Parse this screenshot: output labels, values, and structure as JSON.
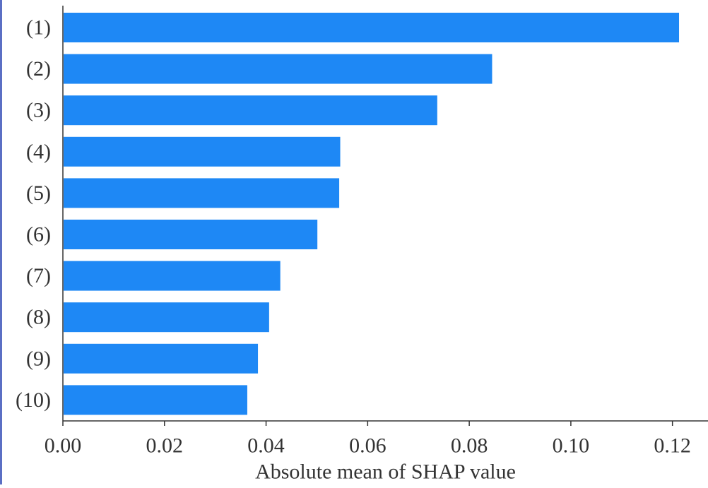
{
  "chart_data": {
    "type": "bar",
    "orientation": "horizontal",
    "title": "",
    "xlabel": "Absolute mean of SHAP value",
    "ylabel": "",
    "categories": [
      "(1)",
      "(2)",
      "(3)",
      "(4)",
      "(5)",
      "(6)",
      "(7)",
      "(8)",
      "(9)",
      "(10)"
    ],
    "values": [
      0.1213,
      0.0845,
      0.0737,
      0.0546,
      0.0544,
      0.0501,
      0.0428,
      0.0406,
      0.0384,
      0.0363
    ],
    "xlim": [
      0,
      0.127
    ],
    "xticks": [
      "0.00",
      "0.02",
      "0.04",
      "0.06",
      "0.08",
      "0.10",
      "0.12"
    ],
    "xtick_values": [
      0,
      0.02,
      0.04,
      0.06,
      0.08,
      0.1,
      0.12
    ],
    "grid": false,
    "legend": "none",
    "bar_color": "#1e88f5",
    "edge_color": "#5b6fc4"
  }
}
